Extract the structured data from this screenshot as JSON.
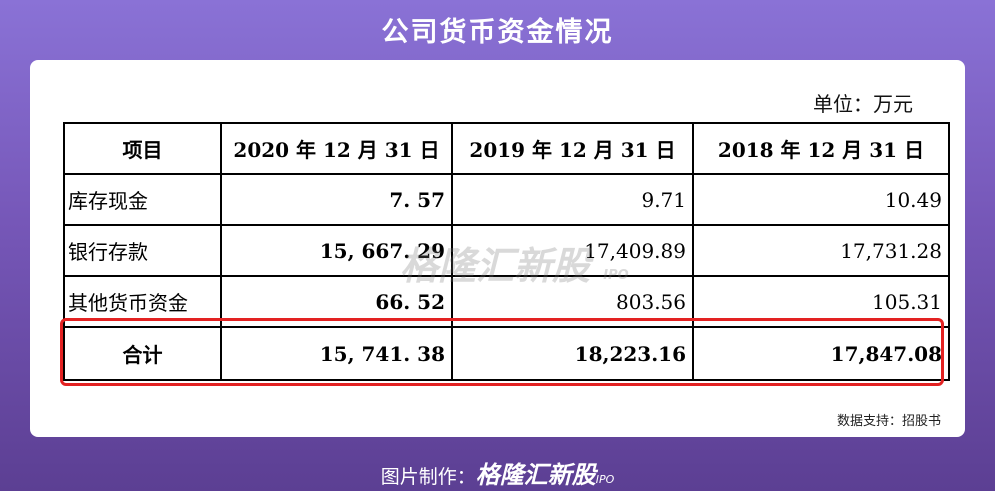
{
  "header": {
    "title": "公司货币资金情况"
  },
  "unit": "单位：万元",
  "table": {
    "header": [
      "项目",
      "2020 年 12 月 31 日",
      "2019 年 12 月 31 日",
      "2018 年 12 月 31 日"
    ],
    "rows": [
      [
        "库存现金",
        "7. 57",
        "9.71",
        "10.49"
      ],
      [
        "银行存款",
        "15, 667. 29",
        "17,409.89",
        "17,731.28"
      ],
      [
        "其他货币资金",
        "66. 52",
        "803.56",
        "105.31"
      ],
      [
        "合计",
        "15, 741. 38",
        "18,223.16",
        "17,847.08"
      ]
    ]
  },
  "watermark": {
    "name": "格隆汇新股",
    "tag": "IPO"
  },
  "source": "数据支持：招股书",
  "footer": {
    "label": "图片制作：",
    "name": "格隆汇新股",
    "tag": "IPO"
  }
}
